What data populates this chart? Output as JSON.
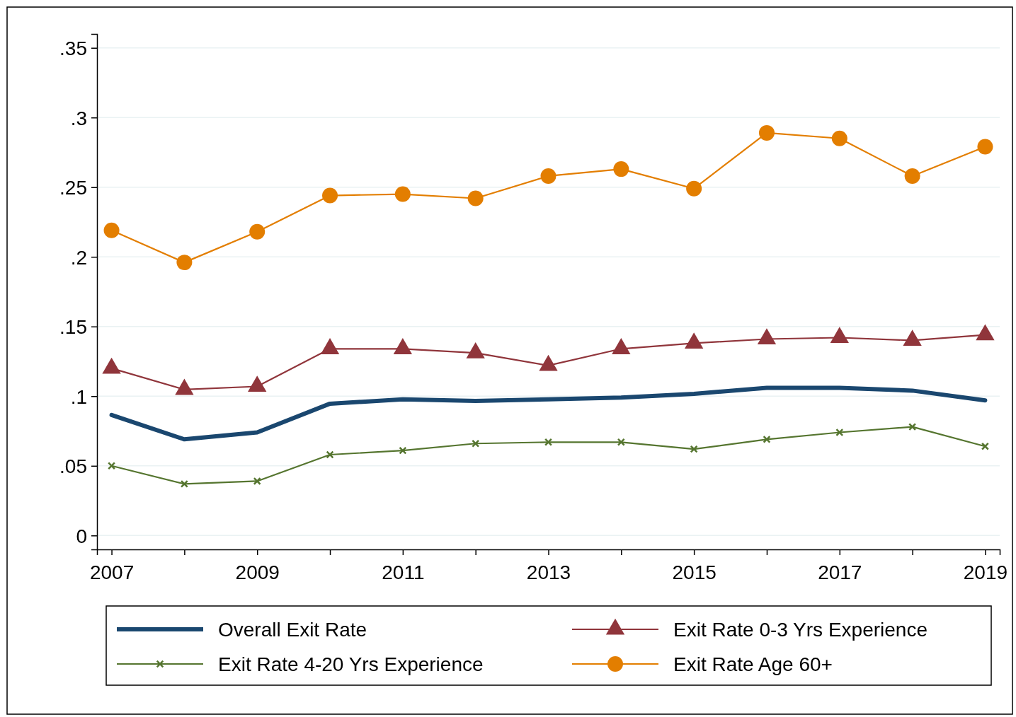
{
  "chart_data": {
    "type": "line",
    "x": [
      2007,
      2008,
      2009,
      2010,
      2011,
      2012,
      2013,
      2014,
      2015,
      2016,
      2017,
      2018,
      2019
    ],
    "series": [
      {
        "name": "Overall Exit Rate",
        "color": "#1a476f",
        "marker": "none",
        "values": [
          0.0865,
          0.069,
          0.074,
          0.0946,
          0.0977,
          0.0966,
          0.0977,
          0.099,
          0.1017,
          0.106,
          0.106,
          0.104,
          0.097
        ]
      },
      {
        "name": "Exit Rate 0-3 Yrs Experience",
        "color": "#90353b",
        "marker": "triangle",
        "values": [
          0.12,
          0.1048,
          0.107,
          0.134,
          0.134,
          0.131,
          0.122,
          0.134,
          0.138,
          0.141,
          0.142,
          0.14,
          0.144
        ]
      },
      {
        "name": "Exit Rate 4-20 Yrs Experience",
        "color": "#55752f",
        "marker": "cross",
        "values": [
          0.05,
          0.037,
          0.039,
          0.058,
          0.061,
          0.066,
          0.067,
          0.067,
          0.062,
          0.069,
          0.074,
          0.078,
          0.064
        ]
      },
      {
        "name": "Exit Rate Age 60+",
        "color": "#e37e00",
        "marker": "circle",
        "values": [
          0.219,
          0.196,
          0.218,
          0.244,
          0.245,
          0.242,
          0.258,
          0.263,
          0.249,
          0.289,
          0.285,
          0.258,
          0.279
        ]
      }
    ],
    "xlim": [
      2006.8,
      2019.2
    ],
    "xticks": [
      2007,
      {
        "value": 2008,
        "label": null
      },
      2009,
      {
        "value": 2010,
        "label": null
      },
      2011,
      {
        "value": 2012,
        "label": null
      },
      2013,
      {
        "value": 2014,
        "label": null
      },
      2015,
      {
        "value": 2016,
        "label": null
      },
      2017,
      {
        "value": 2018,
        "label": null
      },
      2019
    ],
    "ylim": [
      -0.01,
      0.36
    ],
    "yticks": [
      {
        "value": 0,
        "label": "0"
      },
      {
        "value": 0.05,
        "label": ".05"
      },
      {
        "value": 0.1,
        "label": ".1"
      },
      {
        "value": 0.15,
        "label": ".15"
      },
      {
        "value": 0.2,
        "label": ".2"
      },
      {
        "value": 0.25,
        "label": ".25"
      },
      {
        "value": 0.3,
        "label": ".3"
      },
      {
        "value": 0.35,
        "label": ".35"
      }
    ],
    "grid": "y",
    "legend": "bottom",
    "line_style": "solid"
  }
}
